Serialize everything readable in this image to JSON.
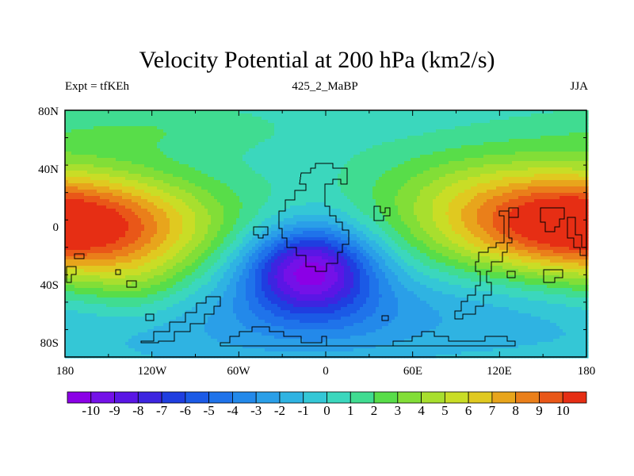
{
  "figure": {
    "title": "Velocity Potential at 200 hPa (km2/s)",
    "left_label": "Expt = tfKEh",
    "center_label": "425_2_MaBP",
    "right_label": "JJA"
  },
  "axes": {
    "lat_ticks": [
      "80N",
      "40N",
      "0",
      "40S",
      "80S"
    ],
    "lon_ticks": [
      "180",
      "120W",
      "60W",
      "0",
      "60E",
      "120E",
      "180"
    ]
  },
  "colorbar": {
    "labels": [
      "-10",
      "-9",
      "-8",
      "-7",
      "-6",
      "-5",
      "-4",
      "-3",
      "-2",
      "-1",
      "0",
      "1",
      "2",
      "3",
      "4",
      "5",
      "6",
      "7",
      "8",
      "9",
      "10"
    ],
    "colors": [
      "#8b00e6",
      "#7411e8",
      "#5a16e5",
      "#3d25e0",
      "#1f3ee0",
      "#1b5ae6",
      "#1f73ea",
      "#2389ea",
      "#2a9fe8",
      "#2fb3e2",
      "#34c7d6",
      "#3bd7bd",
      "#40dc91",
      "#58dd49",
      "#82de37",
      "#a8df2e",
      "#c9dd26",
      "#e0c920",
      "#e8a51c",
      "#ea7f1a",
      "#e95718",
      "#e62e14"
    ]
  },
  "field": {
    "background_value": 0.2,
    "centers": [
      {
        "lon": 178,
        "lat": 5,
        "amp": 12.0,
        "slon": 70,
        "slat": 28
      },
      {
        "lon": 100,
        "lat": 35,
        "amp": 2.0,
        "slon": 60,
        "slat": 25
      },
      {
        "lon": -120,
        "lat": 78,
        "amp": 1.5,
        "slon": 70,
        "slat": 14
      },
      {
        "lon": -130,
        "lat": -40,
        "amp": 1.5,
        "slon": 25,
        "slat": 18
      },
      {
        "lon": -12,
        "lat": -25,
        "amp": -9.8,
        "slon": 32,
        "slat": 22
      },
      {
        "lon": 10,
        "lat": -60,
        "amp": -3.0,
        "slon": 60,
        "slat": 25
      },
      {
        "lon": 130,
        "lat": -50,
        "amp": -1.6,
        "slon": 50,
        "slat": 30
      },
      {
        "lon": -100,
        "lat": -70,
        "amp": -1.5,
        "slon": 60,
        "slat": 25
      }
    ]
  }
}
